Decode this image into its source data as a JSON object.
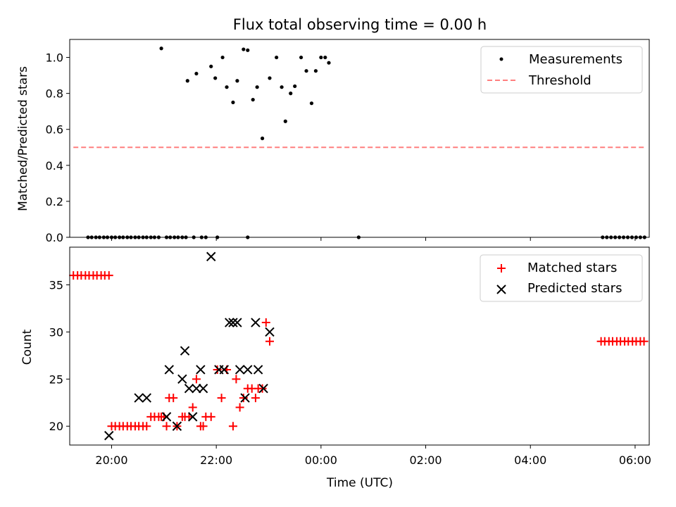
{
  "chart_data": [
    {
      "type": "scatter",
      "title": "Flux total observing time = 0.00 h",
      "xlabel": "",
      "ylabel": "Matched/Predicted stars",
      "xlim": [
        19.2,
        30.27
      ],
      "ylim": [
        0.0,
        1.1
      ],
      "yticks": [
        "0.0",
        "0.2",
        "0.4",
        "0.6",
        "0.8",
        "1.0"
      ],
      "legend_position": "top-right",
      "series": [
        {
          "name": "Measurements",
          "points": [
            [
              19.55,
              0
            ],
            [
              19.62,
              0
            ],
            [
              19.7,
              0
            ],
            [
              19.77,
              0
            ],
            [
              19.85,
              0
            ],
            [
              19.92,
              0
            ],
            [
              20.0,
              0
            ],
            [
              20.07,
              0
            ],
            [
              20.15,
              0
            ],
            [
              20.22,
              0
            ],
            [
              20.3,
              0
            ],
            [
              20.37,
              0
            ],
            [
              20.45,
              0
            ],
            [
              20.52,
              0
            ],
            [
              20.6,
              0
            ],
            [
              20.67,
              0
            ],
            [
              20.75,
              0
            ],
            [
              20.82,
              0
            ],
            [
              20.9,
              0
            ],
            [
              21.05,
              0
            ],
            [
              21.12,
              0
            ],
            [
              21.2,
              0
            ],
            [
              21.27,
              0
            ],
            [
              21.35,
              0
            ],
            [
              21.42,
              0
            ],
            [
              21.57,
              0
            ],
            [
              21.72,
              0
            ],
            [
              21.8,
              0
            ],
            [
              22.02,
              0
            ],
            [
              22.6,
              0
            ],
            [
              20.95,
              1.05
            ],
            [
              21.45,
              0.87
            ],
            [
              21.62,
              0.91
            ],
            [
              21.9,
              0.95
            ],
            [
              21.98,
              0.885
            ],
            [
              22.12,
              1.0
            ],
            [
              22.2,
              0.835
            ],
            [
              22.32,
              0.75
            ],
            [
              22.4,
              0.87
            ],
            [
              22.52,
              1.045
            ],
            [
              22.6,
              1.04
            ],
            [
              22.7,
              0.765
            ],
            [
              22.78,
              0.835
            ],
            [
              22.88,
              0.55
            ],
            [
              23.02,
              0.885
            ],
            [
              23.15,
              1.0
            ],
            [
              23.25,
              0.835
            ],
            [
              23.32,
              0.645
            ],
            [
              23.42,
              0.8
            ],
            [
              23.5,
              0.84
            ],
            [
              23.62,
              1.0
            ],
            [
              23.72,
              0.925
            ],
            [
              23.82,
              0.745
            ],
            [
              23.9,
              0.925
            ],
            [
              24.0,
              1.0
            ],
            [
              24.08,
              1.0
            ],
            [
              24.15,
              0.97
            ],
            [
              24.72,
              0
            ],
            [
              29.38,
              0
            ],
            [
              29.46,
              0
            ],
            [
              29.54,
              0
            ],
            [
              29.62,
              0
            ],
            [
              29.7,
              0
            ],
            [
              29.78,
              0
            ],
            [
              29.86,
              0
            ],
            [
              29.94,
              0
            ],
            [
              30.02,
              0
            ],
            [
              30.1,
              0
            ],
            [
              30.18,
              0
            ]
          ]
        },
        {
          "name": "Threshold",
          "style": "dashed",
          "color": "#ff7f7f",
          "x": [
            19.27,
            30.17
          ],
          "y": [
            0.5,
            0.5
          ]
        }
      ]
    },
    {
      "type": "scatter",
      "title": "",
      "xlabel": "Time (UTC)",
      "ylabel": "Count",
      "xlim": [
        19.2,
        30.27
      ],
      "ylim": [
        18.0,
        39.0
      ],
      "yticks": [
        "20",
        "25",
        "30",
        "35"
      ],
      "xticks": [
        {
          "value": 20,
          "label": "20:00"
        },
        {
          "value": 22,
          "label": "22:00"
        },
        {
          "value": 24,
          "label": "00:00"
        },
        {
          "value": 26,
          "label": "02:00"
        },
        {
          "value": 28,
          "label": "04:00"
        },
        {
          "value": 30,
          "label": "06:00"
        }
      ],
      "legend_position": "top-right",
      "series": [
        {
          "name": "Matched stars",
          "marker": "+",
          "color": "#ff0000",
          "points": [
            [
              19.27,
              36
            ],
            [
              19.35,
              36
            ],
            [
              19.42,
              36
            ],
            [
              19.5,
              36
            ],
            [
              19.57,
              36
            ],
            [
              19.65,
              36
            ],
            [
              19.72,
              36
            ],
            [
              19.8,
              36
            ],
            [
              19.87,
              36
            ],
            [
              19.95,
              36
            ],
            [
              20.0,
              20
            ],
            [
              20.07,
              20
            ],
            [
              20.15,
              20
            ],
            [
              20.22,
              20
            ],
            [
              20.3,
              20
            ],
            [
              20.37,
              20
            ],
            [
              20.45,
              20
            ],
            [
              20.52,
              20
            ],
            [
              20.6,
              20
            ],
            [
              20.67,
              20
            ],
            [
              20.75,
              21
            ],
            [
              20.82,
              21
            ],
            [
              20.9,
              21
            ],
            [
              20.95,
              21
            ],
            [
              21.0,
              21
            ],
            [
              21.05,
              20
            ],
            [
              21.1,
              23
            ],
            [
              21.18,
              23
            ],
            [
              21.25,
              20
            ],
            [
              21.35,
              21
            ],
            [
              21.4,
              21
            ],
            [
              21.48,
              21
            ],
            [
              21.55,
              22
            ],
            [
              21.62,
              25
            ],
            [
              21.7,
              20
            ],
            [
              21.75,
              20
            ],
            [
              21.8,
              21
            ],
            [
              21.9,
              21
            ],
            [
              22.02,
              26
            ],
            [
              22.1,
              23
            ],
            [
              22.2,
              26
            ],
            [
              22.32,
              20
            ],
            [
              22.38,
              25
            ],
            [
              22.45,
              22
            ],
            [
              22.52,
              23
            ],
            [
              22.6,
              24
            ],
            [
              22.68,
              24
            ],
            [
              22.75,
              23
            ],
            [
              22.8,
              24
            ],
            [
              22.88,
              24
            ],
            [
              22.95,
              31
            ],
            [
              23.02,
              29
            ],
            [
              29.35,
              29
            ],
            [
              29.42,
              29
            ],
            [
              29.5,
              29
            ],
            [
              29.57,
              29
            ],
            [
              29.65,
              29
            ],
            [
              29.72,
              29
            ],
            [
              29.8,
              29
            ],
            [
              29.87,
              29
            ],
            [
              29.95,
              29
            ],
            [
              30.02,
              29
            ],
            [
              30.1,
              29
            ],
            [
              30.17,
              29
            ]
          ]
        },
        {
          "name": "Predicted stars",
          "marker": "x",
          "color": "#000000",
          "points": [
            [
              19.95,
              19
            ],
            [
              20.52,
              23
            ],
            [
              20.67,
              23
            ],
            [
              21.05,
              21
            ],
            [
              21.1,
              26
            ],
            [
              21.25,
              20
            ],
            [
              21.35,
              25
            ],
            [
              21.4,
              28
            ],
            [
              21.48,
              24
            ],
            [
              21.55,
              21
            ],
            [
              21.62,
              24
            ],
            [
              21.7,
              26
            ],
            [
              21.75,
              24
            ],
            [
              21.9,
              38
            ],
            [
              22.05,
              26
            ],
            [
              22.15,
              26
            ],
            [
              22.25,
              31
            ],
            [
              22.32,
              31
            ],
            [
              22.4,
              31
            ],
            [
              22.45,
              26
            ],
            [
              22.55,
              23
            ],
            [
              22.6,
              26
            ],
            [
              22.75,
              31
            ],
            [
              22.8,
              26
            ],
            [
              22.9,
              24
            ],
            [
              23.02,
              30
            ]
          ]
        }
      ]
    }
  ]
}
